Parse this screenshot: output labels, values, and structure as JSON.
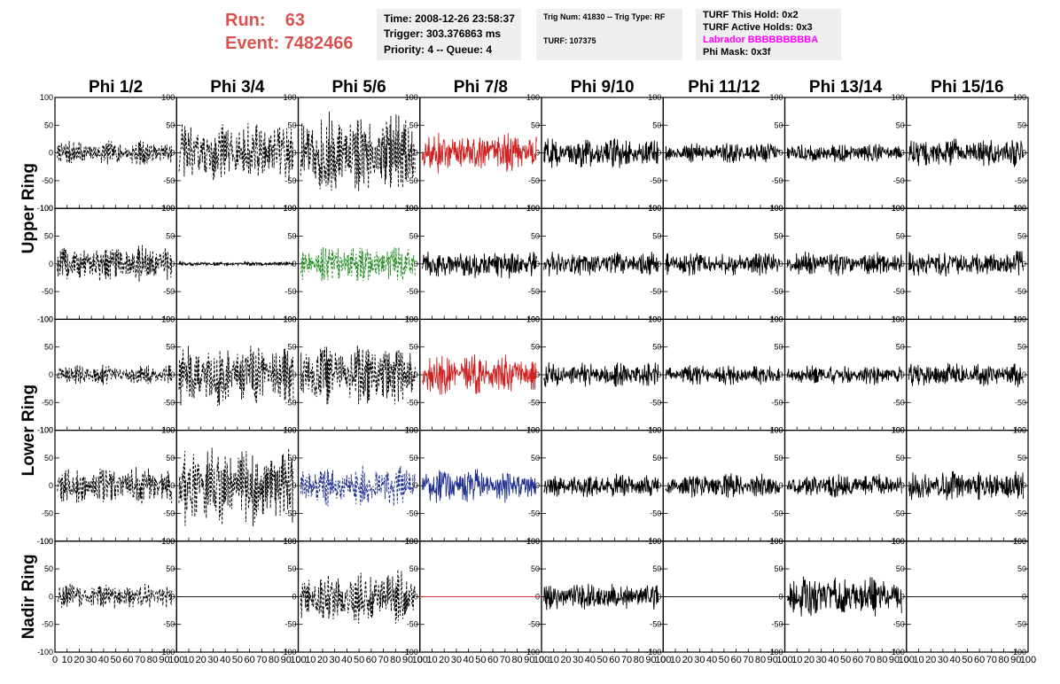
{
  "header": {
    "run_label": "Run:",
    "run_value": "63",
    "event_label": "Event:",
    "event_value": "7482466",
    "time": "Time: 2008-12-26 23:58:37",
    "trigger": "Trigger: 303.376863 ms",
    "priority_queue": "Priority: 4 -- Queue: 4",
    "trig_num_type": "Trig Num: 41830 -- Trig Type: RF",
    "turf": "TURF: 107375",
    "turf_this_hold": "TURF This Hold: 0x2",
    "turf_active_holds": "TURF Active Holds: 0x3",
    "labrador": "Labrador BBBBBBBBBA",
    "phi_mask": "Phi Mask: 0x3f"
  },
  "colors": {
    "run_text": "#d9534f",
    "labrador_text": "#ff00ff",
    "trace_default": "#000000",
    "trace_red": "#cc2222",
    "trace_green": "#228b22",
    "trace_blue": "#1f2f8f",
    "info_bg": "#efefef"
  },
  "chart_data": {
    "type": "line",
    "phi_labels": [
      "Phi 1/2",
      "Phi 3/4",
      "Phi 5/6",
      "Phi 7/8",
      "Phi 9/10",
      "Phi 11/12",
      "Phi 13/14",
      "Phi 15/16"
    ],
    "ring_labels": [
      {
        "text": "Upper Ring",
        "rows": [
          0,
          1
        ]
      },
      {
        "text": "Lower Ring",
        "rows": [
          2,
          3
        ]
      },
      {
        "text": "Nadir Ring",
        "rows": [
          4,
          4
        ]
      }
    ],
    "xlim": [
      0,
      100
    ],
    "ylim": [
      -100,
      100
    ],
    "x_ticks": [
      "0",
      "10",
      "20",
      "30",
      "40",
      "50",
      "60",
      "70",
      "80",
      "90",
      "100"
    ],
    "y_ticks": [
      "100",
      "50",
      "0",
      "-50",
      "-100"
    ],
    "panels": [
      [
        {
          "style": "dashed",
          "color": "black",
          "amp": 18,
          "flat": false
        },
        {
          "style": "dashed",
          "color": "black",
          "amp": 45,
          "flat": false
        },
        {
          "style": "dashed",
          "color": "black",
          "amp": 60,
          "flat": false
        },
        {
          "style": "solid",
          "color": "red",
          "amp": 30,
          "flat": false
        },
        {
          "style": "solid",
          "color": "black",
          "amp": 22,
          "flat": false
        },
        {
          "style": "solid",
          "color": "black",
          "amp": 15,
          "flat": false
        },
        {
          "style": "solid",
          "color": "black",
          "amp": 14,
          "flat": false
        },
        {
          "style": "solid",
          "color": "black",
          "amp": 22,
          "flat": false
        }
      ],
      [
        {
          "style": "dashed",
          "color": "black",
          "amp": 28,
          "flat": false
        },
        {
          "style": "solid",
          "color": "black",
          "amp": 3,
          "flat": false
        },
        {
          "style": "dashed",
          "color": "green",
          "amp": 28,
          "flat": false
        },
        {
          "style": "solid",
          "color": "black",
          "amp": 22,
          "flat": false
        },
        {
          "style": "solid",
          "color": "black",
          "amp": 18,
          "flat": false
        },
        {
          "style": "solid",
          "color": "black",
          "amp": 18,
          "flat": false
        },
        {
          "style": "solid",
          "color": "black",
          "amp": 18,
          "flat": false
        },
        {
          "style": "solid",
          "color": "black",
          "amp": 20,
          "flat": false
        }
      ],
      [
        {
          "style": "dashed",
          "color": "black",
          "amp": 15,
          "flat": false
        },
        {
          "style": "dashed",
          "color": "black",
          "amp": 45,
          "flat": false
        },
        {
          "style": "dashed",
          "color": "black",
          "amp": 45,
          "flat": false
        },
        {
          "style": "solid",
          "color": "red",
          "amp": 30,
          "flat": false
        },
        {
          "style": "solid",
          "color": "black",
          "amp": 18,
          "flat": false
        },
        {
          "style": "solid",
          "color": "black",
          "amp": 15,
          "flat": false
        },
        {
          "style": "solid",
          "color": "black",
          "amp": 15,
          "flat": false
        },
        {
          "style": "solid",
          "color": "black",
          "amp": 18,
          "flat": false
        }
      ],
      [
        {
          "style": "dashed",
          "color": "black",
          "amp": 28,
          "flat": false
        },
        {
          "style": "dashed",
          "color": "black",
          "amp": 60,
          "flat": false
        },
        {
          "style": "dashed",
          "color": "blue",
          "amp": 30,
          "flat": false
        },
        {
          "style": "solid",
          "color": "blue",
          "amp": 25,
          "flat": false
        },
        {
          "style": "solid",
          "color": "black",
          "amp": 18,
          "flat": false
        },
        {
          "style": "solid",
          "color": "black",
          "amp": 18,
          "flat": false
        },
        {
          "style": "solid",
          "color": "black",
          "amp": 18,
          "flat": false
        },
        {
          "style": "solid",
          "color": "black",
          "amp": 22,
          "flat": false
        }
      ],
      [
        {
          "style": "dashed",
          "color": "black",
          "amp": 20,
          "flat": false
        },
        {
          "style": "solid",
          "color": "black",
          "amp": 0,
          "flat": true
        },
        {
          "style": "dashed",
          "color": "black",
          "amp": 40,
          "flat": false
        },
        {
          "style": "solid",
          "color": "red",
          "amp": 0,
          "flat": true
        },
        {
          "style": "solid",
          "color": "black",
          "amp": 20,
          "flat": false
        },
        {
          "style": "solid",
          "color": "black",
          "amp": 0,
          "flat": true
        },
        {
          "style": "solid",
          "color": "black",
          "amp": 30,
          "flat": false
        },
        {
          "style": "solid",
          "color": "black",
          "amp": 0,
          "flat": true
        }
      ]
    ]
  }
}
